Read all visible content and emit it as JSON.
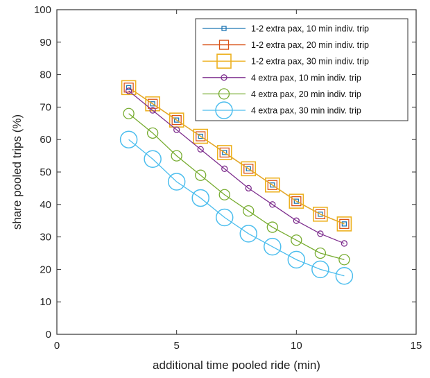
{
  "chart_data": {
    "type": "line",
    "xlabel": "additional time pooled ride (min)",
    "ylabel": "share pooled trips (%)",
    "xlim": [
      0,
      15
    ],
    "ylim": [
      0,
      100
    ],
    "xticks": [
      0,
      5,
      10,
      15
    ],
    "yticks": [
      0,
      10,
      20,
      30,
      40,
      50,
      60,
      70,
      80,
      90,
      100
    ],
    "grid": false,
    "legend_position": "top-right",
    "x": [
      3,
      4,
      5,
      6,
      7,
      8,
      9,
      10,
      11,
      12
    ],
    "series": [
      {
        "name": "1-2 extra pax, 10 min indiv. trip",
        "color": "#1f77b4",
        "marker": "square",
        "marker_size": "small",
        "values": [
          76,
          71,
          66,
          61,
          56,
          51,
          46,
          41,
          37,
          34
        ]
      },
      {
        "name": "1-2 extra pax, 20 min indiv. trip",
        "color": "#d95319",
        "marker": "square",
        "marker_size": "medium",
        "values": [
          76,
          71,
          66,
          61,
          56,
          51,
          46,
          41,
          37,
          34
        ]
      },
      {
        "name": "1-2 extra pax, 30 min indiv. trip",
        "color": "#edb120",
        "marker": "square",
        "marker_size": "large",
        "values": [
          76,
          71,
          66,
          61,
          56,
          51,
          46,
          41,
          37,
          34
        ]
      },
      {
        "name": "4 extra pax, 10 min indiv. trip",
        "color": "#7e2f8e",
        "marker": "circle",
        "marker_size": "small",
        "values": [
          75,
          69,
          63,
          57,
          51,
          45,
          40,
          35,
          31,
          28
        ]
      },
      {
        "name": "4 extra pax, 20 min indiv. trip",
        "color": "#77ac30",
        "marker": "circle",
        "marker_size": "medium",
        "values": [
          68,
          62,
          55,
          49,
          43,
          38,
          33,
          29,
          25,
          23
        ]
      },
      {
        "name": "4 extra pax, 30 min indiv. trip",
        "color": "#4dbeee",
        "marker": "circle",
        "marker_size": "large",
        "values": [
          60,
          54,
          47,
          42,
          36,
          31,
          27,
          23,
          20,
          18
        ]
      }
    ]
  }
}
